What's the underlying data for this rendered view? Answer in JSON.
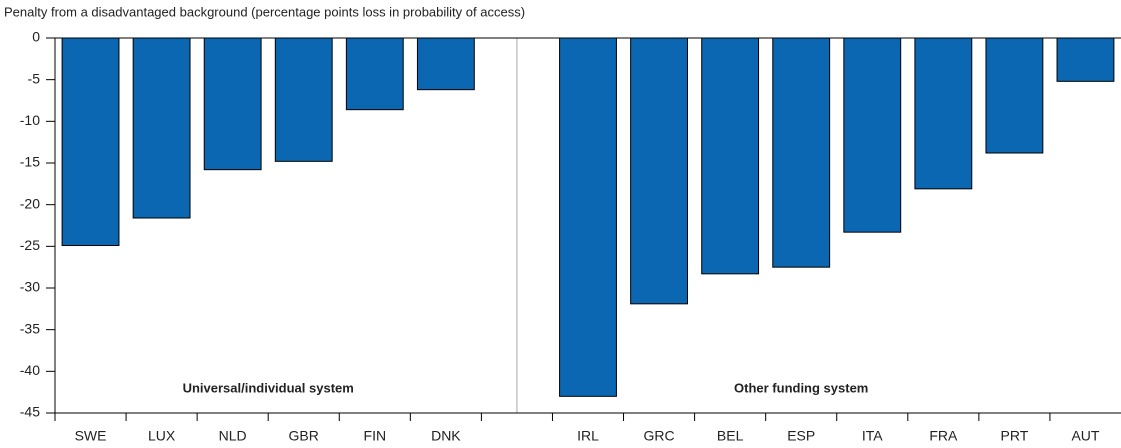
{
  "chart_data": {
    "type": "bar",
    "title": "Penalty from a disadvantaged background (percentage points loss in probability of access)",
    "categories": [
      "SWE",
      "LUX",
      "NLD",
      "GBR",
      "FIN",
      "DNK",
      null,
      "IRL",
      "GRC",
      "BEL",
      "ESP",
      "ITA",
      "FRA",
      "PRT",
      "AUT"
    ],
    "values": [
      -24.9,
      -21.6,
      -15.8,
      -14.8,
      -8.6,
      -6.2,
      null,
      -43,
      -31.9,
      -28.3,
      -27.5,
      -23.3,
      -18.1,
      -13.8,
      -5.2
    ],
    "color": "#0b67b2",
    "ylim": [
      -45,
      0
    ],
    "yticks": [
      0,
      -5,
      -10,
      -15,
      -20,
      -25,
      -30,
      -35,
      -40,
      -45
    ],
    "annotations": [
      "Universal/individual system",
      "Other funding system"
    ]
  }
}
